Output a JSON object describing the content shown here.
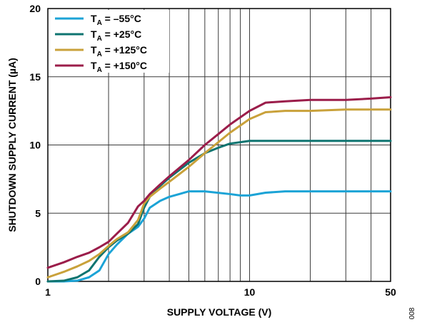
{
  "chart_data": {
    "type": "line",
    "xlabel": "SUPPLY VOLTAGE (V)",
    "ylabel": "SHUTDOWN SUPPLY CURRENT (µA)",
    "xscale": "log",
    "xlim": [
      1,
      50
    ],
    "ylim": [
      0,
      20
    ],
    "x_ticks": [
      1,
      10,
      50
    ],
    "x_tick_labels": [
      "1",
      "10",
      "50"
    ],
    "y_ticks": [
      0,
      5,
      10,
      15,
      20
    ],
    "y_tick_labels": [
      "0",
      "5",
      "10",
      "15",
      "20"
    ],
    "grid": true,
    "legend_position": "top-left",
    "figure_id": "008",
    "series": [
      {
        "name": "TA = –55°C",
        "name_main": "T",
        "name_sub": "A",
        "name_rest": " = –55°C",
        "color": "#1BA3D6",
        "x": [
          1,
          1.2,
          1.4,
          1.6,
          1.8,
          2.0,
          2.2,
          2.5,
          2.8,
          3.0,
          3.2,
          3.6,
          4.0,
          5.0,
          6.0,
          8.0,
          9.0,
          10,
          12,
          15,
          20,
          30,
          40,
          50
        ],
        "y": [
          0,
          0,
          0.05,
          0.3,
          0.8,
          2.0,
          2.7,
          3.5,
          4.0,
          4.6,
          5.4,
          5.9,
          6.2,
          6.6,
          6.6,
          6.4,
          6.3,
          6.3,
          6.5,
          6.6,
          6.6,
          6.6,
          6.6,
          6.6
        ]
      },
      {
        "name": "TA = +25°C",
        "name_main": "T",
        "name_sub": "A",
        "name_rest": " = +25°C",
        "color": "#0E7470",
        "x": [
          1,
          1.2,
          1.4,
          1.6,
          1.8,
          2.0,
          2.2,
          2.5,
          2.8,
          3.0,
          3.2,
          3.6,
          4.0,
          5.0,
          6.0,
          7.0,
          8.0,
          9.0,
          10,
          12,
          15,
          20,
          30,
          40,
          50
        ],
        "y": [
          0,
          0.05,
          0.3,
          0.8,
          1.8,
          2.5,
          3.0,
          3.5,
          4.2,
          5.4,
          6.2,
          7.0,
          7.6,
          8.7,
          9.4,
          9.8,
          10.1,
          10.2,
          10.3,
          10.3,
          10.3,
          10.3,
          10.3,
          10.3,
          10.3
        ]
      },
      {
        "name": "TA = +125°C",
        "name_main": "T",
        "name_sub": "A",
        "name_rest": " = +125°C",
        "color": "#C9A13A",
        "x": [
          1,
          1.2,
          1.4,
          1.6,
          1.8,
          2.0,
          2.2,
          2.5,
          2.8,
          3.0,
          3.2,
          3.6,
          4.0,
          5.0,
          6.0,
          8.0,
          10,
          12,
          15,
          20,
          30,
          40,
          50
        ],
        "y": [
          0.3,
          0.7,
          1.1,
          1.5,
          2.0,
          2.6,
          3.1,
          3.6,
          4.5,
          5.7,
          6.2,
          6.8,
          7.3,
          8.4,
          9.4,
          10.9,
          11.9,
          12.4,
          12.5,
          12.5,
          12.6,
          12.6,
          12.6
        ]
      },
      {
        "name": "TA = +150°C",
        "name_main": "T",
        "name_sub": "A",
        "name_rest": " = +150°C",
        "color": "#9B1D4A",
        "x": [
          1,
          1.2,
          1.4,
          1.6,
          1.8,
          2.0,
          2.2,
          2.5,
          2.8,
          3.0,
          3.2,
          3.6,
          4.0,
          5.0,
          6.0,
          7.0,
          8.0,
          10,
          12,
          15,
          20,
          30,
          40,
          50
        ],
        "y": [
          1.0,
          1.4,
          1.8,
          2.1,
          2.5,
          2.9,
          3.5,
          4.3,
          5.5,
          5.9,
          6.4,
          7.1,
          7.7,
          8.9,
          10.0,
          10.8,
          11.5,
          12.5,
          13.1,
          13.2,
          13.3,
          13.3,
          13.4,
          13.5
        ]
      }
    ]
  }
}
